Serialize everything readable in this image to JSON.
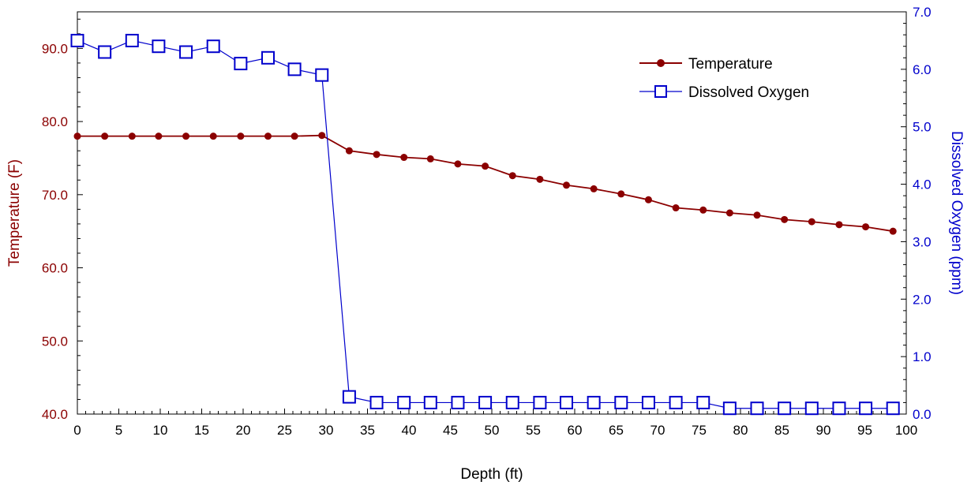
{
  "colors": {
    "temperature": "#8b0000",
    "oxygen": "#0000cc",
    "axis": "#000000",
    "background": "#ffffff"
  },
  "chart_data": {
    "type": "line",
    "xlabel": "Depth (ft)",
    "ylabel_left": "Temperature (F)",
    "ylabel_right": "Dissolved Oxygen (ppm)",
    "xlim": [
      0,
      100
    ],
    "ylim_left": [
      40,
      95
    ],
    "ylim_right": [
      0,
      7
    ],
    "x_ticks": [
      "0",
      "5",
      "10",
      "15",
      "20",
      "25",
      "30",
      "35",
      "40",
      "45",
      "50",
      "55",
      "60",
      "65",
      "70",
      "75",
      "80",
      "85",
      "90",
      "95",
      "100"
    ],
    "y_left_ticks": [
      "40.0",
      "50.0",
      "60.0",
      "70.0",
      "80.0",
      "90.0"
    ],
    "y_right_ticks": [
      "0.0",
      "1.0",
      "2.0",
      "3.0",
      "4.0",
      "5.0",
      "6.0",
      "7.0"
    ],
    "grid": false,
    "legend_position": "top-right",
    "series": [
      {
        "name": "Temperature",
        "axis": "left",
        "marker": "filled-circle",
        "x": [
          0,
          3.3,
          6.6,
          9.8,
          13.1,
          16.4,
          19.7,
          23,
          26.2,
          29.5,
          32.8,
          36.1,
          39.4,
          42.6,
          45.9,
          49.2,
          52.5,
          55.8,
          59,
          62.3,
          65.6,
          68.9,
          72.2,
          75.5,
          78.7,
          82,
          85.3,
          88.6,
          91.9,
          95.1,
          98.4
        ],
        "values": [
          78,
          78,
          78,
          78,
          78,
          78,
          78,
          78,
          78,
          78.1,
          76,
          75.5,
          75.1,
          74.9,
          74.2,
          73.9,
          72.6,
          72.1,
          71.3,
          70.8,
          70.1,
          69.3,
          68.2,
          67.9,
          67.5,
          67.2,
          66.6,
          66.3,
          65.9,
          65.6,
          65
        ]
      },
      {
        "name": "Dissolved Oxygen",
        "axis": "right",
        "marker": "open-square",
        "x": [
          0,
          3.3,
          6.6,
          9.8,
          13.1,
          16.4,
          19.7,
          23,
          26.2,
          29.5,
          32.8,
          36.1,
          39.4,
          42.6,
          45.9,
          49.2,
          52.5,
          55.8,
          59,
          62.3,
          65.6,
          68.9,
          72.2,
          75.5,
          78.7,
          82,
          85.3,
          88.6,
          91.9,
          95.1,
          98.4
        ],
        "values": [
          6.5,
          6.3,
          6.5,
          6.4,
          6.3,
          6.4,
          6.1,
          6.2,
          6.0,
          5.9,
          0.3,
          0.2,
          0.2,
          0.2,
          0.2,
          0.2,
          0.2,
          0.2,
          0.2,
          0.2,
          0.2,
          0.2,
          0.2,
          0.2,
          0.1,
          0.1,
          0.1,
          0.1,
          0.1,
          0.1,
          0.1
        ]
      }
    ]
  }
}
